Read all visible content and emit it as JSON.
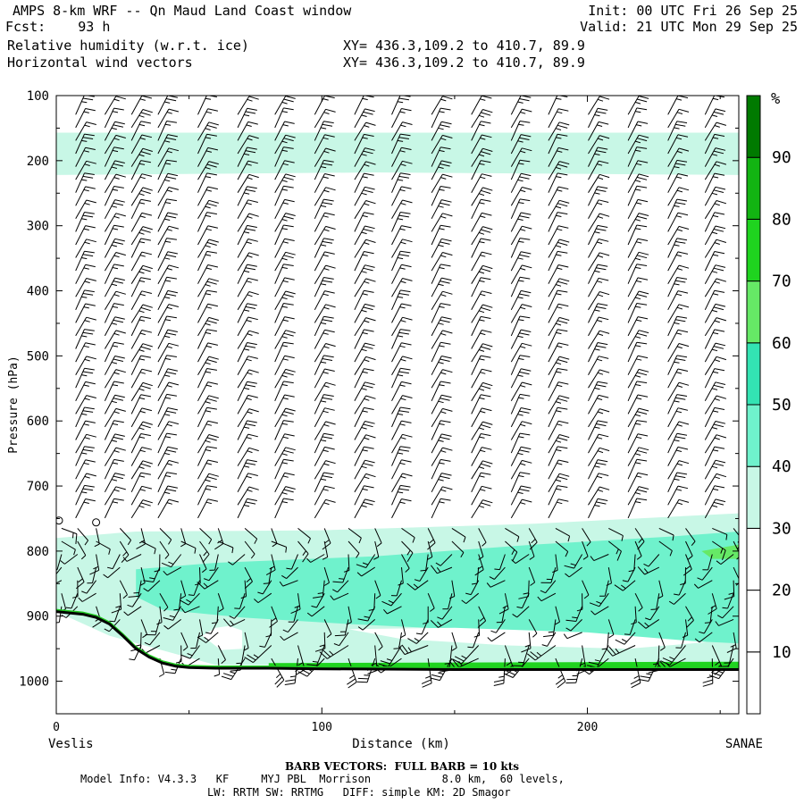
{
  "header": {
    "title_left": "AMPS 8-km WRF -- Qn Maud Land Coast window",
    "fcst": "Fcst:    93 h",
    "field1": "Relative humidity (w.r.t. ice)",
    "field2": "Horizontal wind vectors",
    "xy1": "XY= 436.3,109.2 to 410.7, 89.9",
    "xy2": "XY= 436.3,109.2 to 410.7, 89.9",
    "init": "Init: 00 UTC Fri 26 Sep 25",
    "valid": "Valid: 21 UTC Mon 29 Sep 25"
  },
  "footer": {
    "barb_note": "BARB VECTORS:  FULL BARB = 10 kts",
    "model_info_1": "Model Info: V4.3.3   KF     MYJ PBL  Morrison           8.0 km,  60 levels,",
    "model_info_2": "LW: RRTM SW: RRTMG   DIFF: simple KM: 2D Smagor"
  },
  "colors": {
    "rh_30_40": "#c8f7e6",
    "rh_40_50": "#6ff2cc",
    "rh_50_60": "#33e3b3",
    "rh_60_70": "#66e966",
    "rh_70_80": "#1fd41f",
    "rh_80_90": "#12b412",
    "rh_90_100": "#007a00",
    "terrain": "#000000"
  },
  "chart_data": {
    "type": "heatmap",
    "title": "Relative humidity (w.r.t. ice) and horizontal wind vectors — cross section",
    "xlabel": "Distance (km)",
    "ylabel": "Pressure (hPa)",
    "xlim": [
      0,
      257
    ],
    "ylim": [
      1050,
      100
    ],
    "x_ticks": [
      0,
      100,
      200
    ],
    "y_ticks": [
      100,
      200,
      300,
      400,
      500,
      600,
      700,
      800,
      900,
      1000
    ],
    "x_end_labels": {
      "left": "Veslis",
      "right": "SANAE"
    },
    "colorbar": {
      "unit": "%",
      "levels": [
        10,
        20,
        30,
        40,
        50,
        60,
        70,
        80,
        90
      ],
      "colors": [
        "#ffffff",
        "#ffffff",
        "#ffffff",
        "#c8f7e6",
        "#6ff2cc",
        "#33e3b3",
        "#66e966",
        "#1fd41f",
        "#12b412",
        "#007a00"
      ]
    },
    "rh_regions": [
      {
        "range": "30-40",
        "x": [
          0,
          257
        ],
        "p": [
          157,
          222
        ],
        "note": "upper-level moist band"
      },
      {
        "range": "30-40",
        "x": [
          0,
          257
        ],
        "p": [
          740,
          975
        ],
        "note": "lower-level moist layer envelope"
      },
      {
        "range": "40-50",
        "x": [
          28,
          257
        ],
        "p": [
          760,
          955
        ],
        "note": "main moist layer core"
      },
      {
        "range": "60-70",
        "x": [
          240,
          257
        ],
        "p": [
          790,
          810
        ],
        "note": "small maximum near SANAE"
      },
      {
        "range": "80-100",
        "x": [
          80,
          257
        ],
        "p": [
          972,
          985
        ],
        "note": "near-surface saturated strip"
      }
    ],
    "terrain": {
      "x": [
        0,
        5,
        10,
        15,
        20,
        25,
        30,
        35,
        40,
        45,
        50,
        60,
        80,
        100,
        150,
        200,
        257
      ],
      "p": [
        893,
        895,
        897,
        902,
        912,
        930,
        950,
        963,
        972,
        977,
        979,
        980,
        980,
        981,
        982,
        982,
        982
      ]
    },
    "wind_barbs": {
      "upper_x_km": [
        10,
        21,
        31,
        41,
        56,
        71,
        85,
        100,
        115,
        129,
        144,
        159,
        174,
        188,
        203,
        218,
        233,
        247
      ],
      "upper_p_hpa": [
        110,
        130,
        150,
        170,
        190,
        210,
        230,
        250,
        270,
        290,
        310,
        330,
        350,
        370,
        390,
        410,
        430,
        450,
        470,
        490,
        510,
        530,
        550,
        570,
        590,
        610,
        630,
        650,
        670,
        690,
        710,
        730
      ],
      "upper_note": "southwesterly flow, mostly 15-20 kt (one full + half barb)",
      "lower_x_km": [
        2,
        8,
        15,
        24,
        32,
        39,
        47,
        54,
        61,
        71,
        81,
        91,
        101,
        110,
        120,
        130,
        140,
        149,
        159,
        169,
        178,
        188,
        198,
        208,
        218,
        227,
        237,
        247,
        255
      ],
      "lower_p_hpa": [
        765,
        785,
        805,
        825,
        845,
        865,
        885,
        905,
        925,
        945,
        965,
        985
      ],
      "lower_note": "weak, variable winds in the moist boundary layer; stronger barbs near the surface east of 70 km",
      "calm_markers": [
        {
          "x_km": 1,
          "p_hpa": 753
        },
        {
          "x_km": 15,
          "p_hpa": 756
        }
      ]
    }
  }
}
